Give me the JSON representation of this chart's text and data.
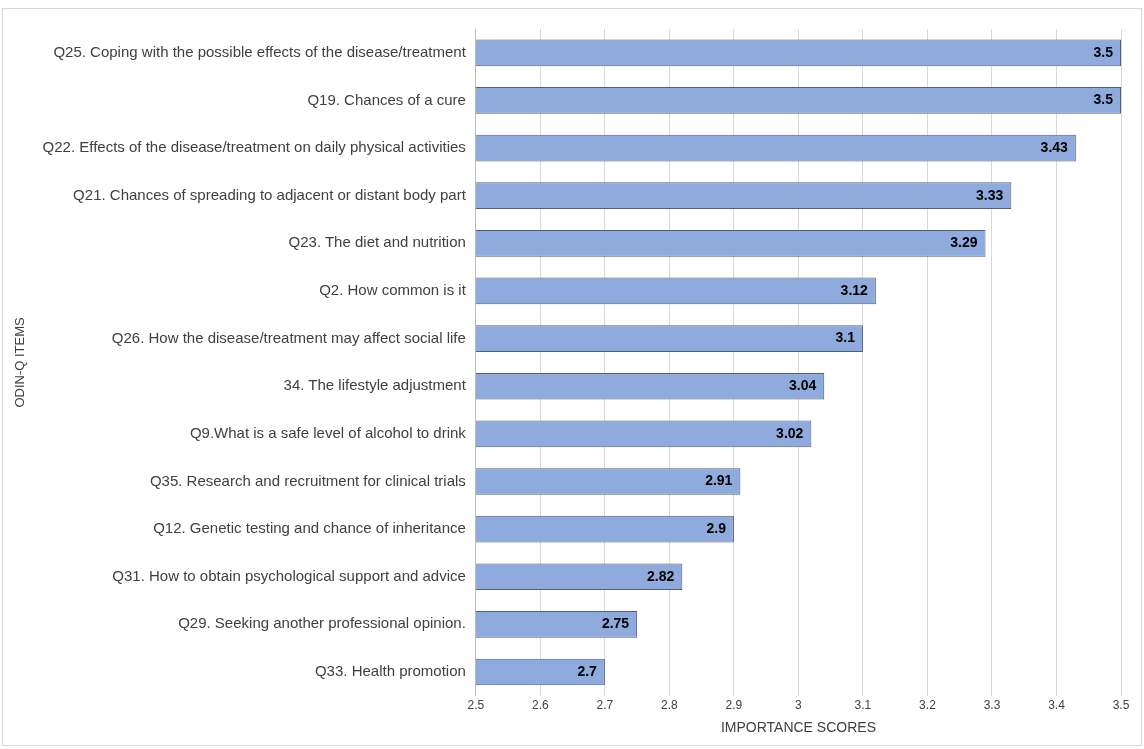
{
  "chart_data": {
    "type": "bar",
    "orientation": "horizontal",
    "xlabel": "IMPORTANCE SCORES",
    "ylabel": "ODIN-Q ITEMS",
    "categories": [
      "Q25. Coping with the possible effects of the disease/treatment",
      "Q19. Chances of a cure",
      "Q22. Effects of the disease/treatment on daily physical activities",
      "Q21. Chances of spreading to adjacent or distant body part",
      "Q23. The diet and nutrition",
      "Q2. How common is it",
      "Q26. How the disease/treatment may affect social life",
      "34. The lifestyle adjustment",
      "Q9.What is a safe level of alcohol to drink",
      "Q35. Research and recruitment for clinical trials",
      "Q12. Genetic testing and chance of inheritance",
      "Q31. How to obtain psychological support and advice",
      "Q29. Seeking another professional opinion.",
      "Q33. Health promotion"
    ],
    "values": [
      3.5,
      3.5,
      3.43,
      3.33,
      3.29,
      3.12,
      3.1,
      3.04,
      3.02,
      2.91,
      2.9,
      2.82,
      2.75,
      2.7
    ],
    "color": "#8faadc",
    "xlim": [
      2.5,
      3.5
    ],
    "xticks": [
      2.5,
      2.6,
      2.7,
      2.8,
      2.9,
      3,
      3.1,
      3.2,
      3.3,
      3.4,
      3.5
    ],
    "grid": "x",
    "legend": false,
    "data_labels": true
  }
}
